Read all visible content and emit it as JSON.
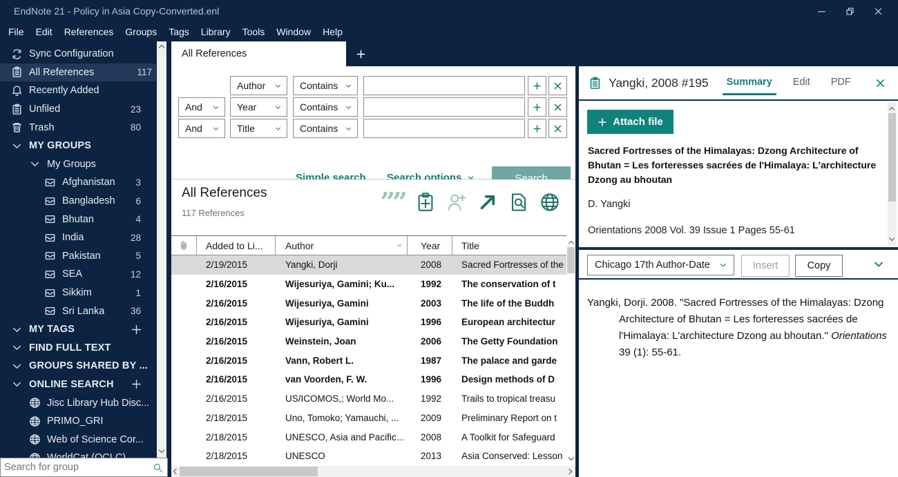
{
  "window": {
    "title": "EndNote 21 - Policy in Asia Copy-Converted.enl",
    "controls": [
      "minimize",
      "restore",
      "close"
    ]
  },
  "menu": {
    "items": [
      "File",
      "Edit",
      "References",
      "Groups",
      "Tags",
      "Library",
      "Tools",
      "Window",
      "Help"
    ]
  },
  "sidebar": {
    "rows": [
      {
        "icon": "sync",
        "label": "Sync Configuration",
        "count": "",
        "indent": 0
      },
      {
        "icon": "clipboard",
        "label": "All References",
        "count": "117",
        "indent": 0,
        "selected": true
      },
      {
        "icon": "bell",
        "label": "Recently Added",
        "count": "",
        "indent": 0
      },
      {
        "icon": "clipboard",
        "label": "Unfiled",
        "count": "23",
        "indent": 0
      },
      {
        "icon": "trash",
        "label": "Trash",
        "count": "80",
        "indent": 0
      },
      {
        "icon": "chevron-down",
        "label": "MY GROUPS",
        "count": "",
        "indent": 0,
        "bold": true
      },
      {
        "icon": "chevron-down",
        "label": "My Groups",
        "count": "",
        "indent": 1
      },
      {
        "icon": "inbox",
        "label": "Afghanistan",
        "count": "3",
        "indent": 2
      },
      {
        "icon": "inbox",
        "label": "Bangladesh",
        "count": "6",
        "indent": 2
      },
      {
        "icon": "inbox",
        "label": "Bhutan",
        "count": "4",
        "indent": 2
      },
      {
        "icon": "inbox",
        "label": "India",
        "count": "28",
        "indent": 2
      },
      {
        "icon": "inbox",
        "label": "Pakistan",
        "count": "5",
        "indent": 2
      },
      {
        "icon": "inbox",
        "label": "SEA",
        "count": "12",
        "indent": 2
      },
      {
        "icon": "inbox",
        "label": "Sikkim",
        "count": "1",
        "indent": 2
      },
      {
        "icon": "inbox",
        "label": "Sri Lanka",
        "count": "36",
        "indent": 2
      },
      {
        "icon": "chevron-down",
        "label": "MY TAGS",
        "count": "",
        "indent": 0,
        "bold": true,
        "plus": true
      },
      {
        "icon": "chevron-down",
        "label": "FIND FULL TEXT",
        "count": "",
        "indent": 0,
        "bold": true
      },
      {
        "icon": "chevron-down",
        "label": "GROUPS SHARED BY ...",
        "count": "",
        "indent": 0,
        "bold": true
      },
      {
        "icon": "chevron-down",
        "label": "ONLINE SEARCH",
        "count": "",
        "indent": 0,
        "bold": true,
        "plus": true
      },
      {
        "icon": "globe",
        "label": "Jisc Library Hub Disc...",
        "count": "",
        "indent": 1
      },
      {
        "icon": "globe",
        "label": "PRIMO_GRI",
        "count": "",
        "indent": 1
      },
      {
        "icon": "globe",
        "label": "Web of Science Cor...",
        "count": "",
        "indent": 1
      },
      {
        "icon": "globe",
        "label": "WorldCat (OCLC)",
        "count": "",
        "indent": 1
      }
    ],
    "search_placeholder": "Search for group"
  },
  "tabbar": {
    "active_tab": "All References"
  },
  "search_panel": {
    "rows": [
      {
        "bool": "",
        "field": "Author",
        "op": "Contains",
        "value": ""
      },
      {
        "bool": "And",
        "field": "Year",
        "op": "Contains",
        "value": ""
      },
      {
        "bool": "And",
        "field": "Title",
        "op": "Contains",
        "value": ""
      }
    ],
    "simple_search_label": "Simple search",
    "search_options_label": "Search options",
    "search_button_label": "Search"
  },
  "list": {
    "title": "All References",
    "count": "117 References",
    "toolbar_icons": [
      {
        "name": "quotes",
        "enabled": false
      },
      {
        "name": "clipboard-plus",
        "enabled": true
      },
      {
        "name": "person-plus",
        "enabled": false
      },
      {
        "name": "share-arrow",
        "enabled": true
      },
      {
        "name": "doc-search",
        "enabled": true
      },
      {
        "name": "globe",
        "enabled": true
      }
    ],
    "columns": [
      "Added to Li...",
      "Author",
      "Year",
      "Title"
    ],
    "rows": [
      {
        "added": "2/19/2015",
        "author": "Yangki, Dorji",
        "year": "2008",
        "title": "Sacred Fortresses of the",
        "bold": false,
        "selected": true
      },
      {
        "added": "2/16/2015",
        "author": "Wijesuriya, Gamini; Ku...",
        "year": "1992",
        "title": "The conservation of t",
        "bold": true
      },
      {
        "added": "2/16/2015",
        "author": "Wijesuriya, Gamini",
        "year": "2003",
        "title": "The life of the Buddh",
        "bold": true
      },
      {
        "added": "2/16/2015",
        "author": "Wijesuriya, Gamini",
        "year": "1996",
        "title": "European architectur",
        "bold": true
      },
      {
        "added": "2/16/2015",
        "author": "Weinstein, Joan",
        "year": "2006",
        "title": "The Getty Foundation",
        "bold": true
      },
      {
        "added": "2/16/2015",
        "author": "Vann, Robert L.",
        "year": "1987",
        "title": "The palace and garde",
        "bold": true
      },
      {
        "added": "2/16/2015",
        "author": "van Voorden, F. W.",
        "year": "1996",
        "title": "Design methods of D",
        "bold": true
      },
      {
        "added": "2/16/2015",
        "author": "US/ICOMOS,; World Mo...",
        "year": "1992",
        "title": "Trails to tropical treasu",
        "bold": false
      },
      {
        "added": "2/18/2015",
        "author": "Uno, Tomoko; Yamauchi, ...",
        "year": "2009",
        "title": "Preliminary Report on t",
        "bold": false
      },
      {
        "added": "2/18/2015",
        "author": "UNESCO, Asia and Pacific...",
        "year": "2008",
        "title": "A Toolkit for Safeguard",
        "bold": false
      },
      {
        "added": "2/18/2015",
        "author": "UNESCO",
        "year": "2013",
        "title": "Asia Conserved: Lesson",
        "bold": false
      }
    ]
  },
  "detail": {
    "record_title": "Yangki, 2008 #195",
    "tabs": [
      "Summary",
      "Edit",
      "PDF"
    ],
    "active_tab": "Summary",
    "attach_button_label": "Attach file",
    "ref_title": "Sacred Fortresses of the Himalayas: Dzong Architecture of Bhutan = Les forteresses sacrées de l'Himalaya: L'architecture Dzong au bhoutan",
    "ref_author": "D. Yangki",
    "ref_source": "Orientations 2008 Vol. 39 Issue 1 Pages 55-61"
  },
  "citation": {
    "style_selected": "Chicago 17th Author-Date",
    "insert_label": "Insert",
    "copy_label": "Copy",
    "text_part1": "Yangki, Dorji. 2008. \"Sacred Fortresses of the Himalayas: Dzong Architecture of Bhutan = Les forteresses sacrées de l'Himalaya: L'architecture Dzong au bhoutan.\" ",
    "text_italic": "Orientations",
    "text_part2": " 39 (1): 55-61."
  },
  "colors": {
    "navy": "#0D2342",
    "sidebar_selected": "#23395A",
    "teal_accent": "#157E77",
    "teal_button": "#0F837B",
    "teal_muted": "#6FA7A4",
    "selected_row": "#D9D9D9"
  }
}
